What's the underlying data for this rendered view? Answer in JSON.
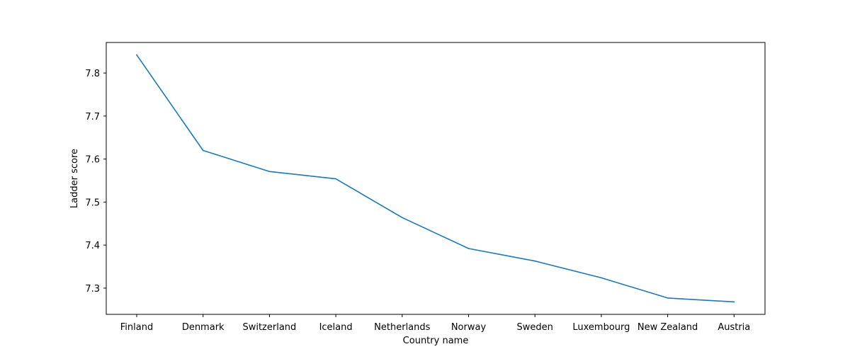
{
  "chart_data": {
    "type": "line",
    "title": "",
    "xlabel": "Country name",
    "ylabel": "Ladder score",
    "categories": [
      "Finland",
      "Denmark",
      "Switzerland",
      "Iceland",
      "Netherlands",
      "Norway",
      "Sweden",
      "Luxembourg",
      "New Zealand",
      "Austria"
    ],
    "series": [
      {
        "values": [
          7.842,
          7.62,
          7.571,
          7.554,
          7.464,
          7.392,
          7.363,
          7.324,
          7.277,
          7.268
        ],
        "color": "#1f77b4"
      }
    ],
    "ylim": [
      7.239,
      7.871
    ],
    "yticks": [
      7.3,
      7.4,
      7.5,
      7.6,
      7.7,
      7.8
    ],
    "ytick_labels": [
      "7.3",
      "7.4",
      "7.5",
      "7.6",
      "7.7",
      "7.8"
    ],
    "grid": false,
    "legend": "none"
  }
}
